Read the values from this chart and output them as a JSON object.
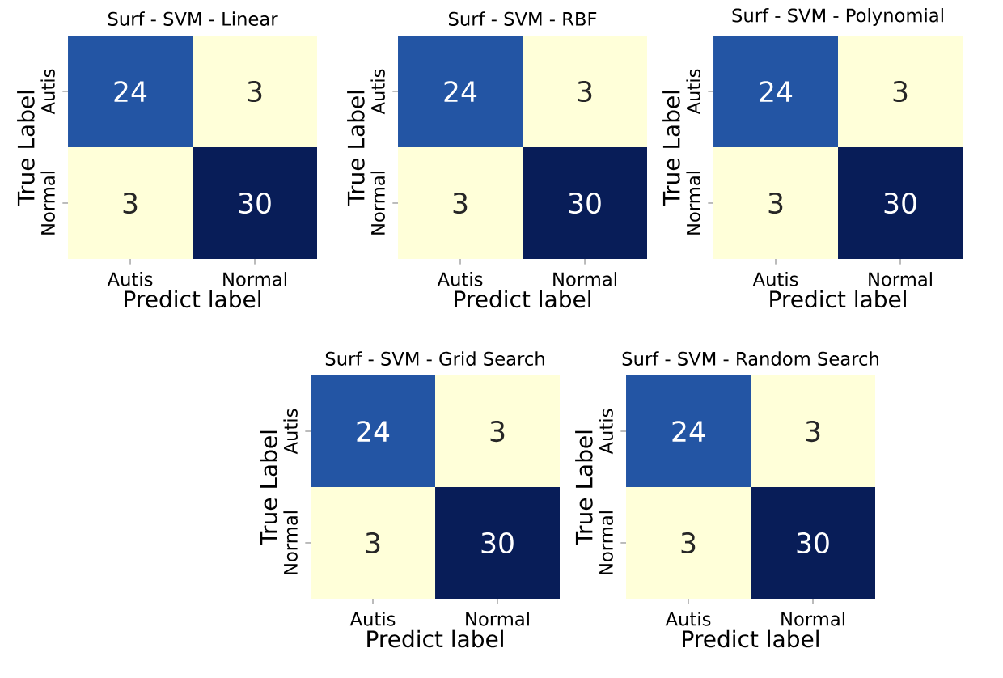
{
  "chart_data": [
    {
      "type": "heatmap",
      "title": "Surf - SVM - Linear",
      "xlabel": "Predict label",
      "ylabel": "True Label",
      "categories": [
        "Autis",
        "Normal"
      ],
      "y_categories": [
        "Autis",
        "Normal"
      ],
      "cells": [
        [
          24,
          3
        ],
        [
          3,
          30
        ]
      ],
      "data_labels": true
    },
    {
      "type": "heatmap",
      "title": "Surf - SVM - RBF",
      "xlabel": "Predict label",
      "ylabel": "True Label",
      "categories": [
        "Autis",
        "Normal"
      ],
      "y_categories": [
        "Autis",
        "Normal"
      ],
      "cells": [
        [
          24,
          3
        ],
        [
          3,
          30
        ]
      ],
      "data_labels": true
    },
    {
      "type": "heatmap",
      "title": "Surf - SVM - Polynomial",
      "xlabel": "Predict label",
      "ylabel": "True Label",
      "categories": [
        "Autis",
        "Normal"
      ],
      "y_categories": [
        "Autis",
        "Normal"
      ],
      "cells": [
        [
          24,
          3
        ],
        [
          3,
          30
        ]
      ],
      "data_labels": true
    },
    {
      "type": "heatmap",
      "title": "Surf - SVM - Grid Search",
      "xlabel": "Predict label",
      "ylabel": "True Label",
      "categories": [
        "Autis",
        "Normal"
      ],
      "y_categories": [
        "Autis",
        "Normal"
      ],
      "cells": [
        [
          24,
          3
        ],
        [
          3,
          30
        ]
      ],
      "data_labels": true
    },
    {
      "type": "heatmap",
      "title": "Surf - SVM - Random Search",
      "xlabel": "Predict label",
      "ylabel": "True Label",
      "categories": [
        "Autis",
        "Normal"
      ],
      "y_categories": [
        "Autis",
        "Normal"
      ],
      "cells": [
        [
          24,
          3
        ],
        [
          3,
          30
        ]
      ],
      "data_labels": true
    }
  ]
}
